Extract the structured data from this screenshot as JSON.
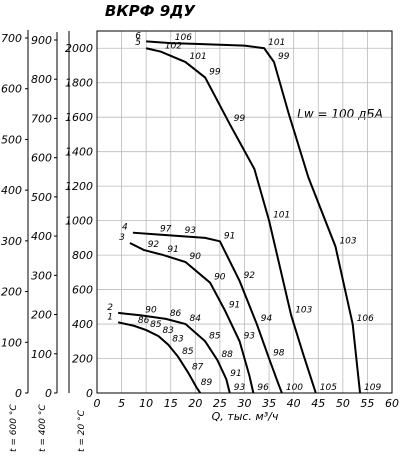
{
  "chart_data": {
    "type": "line",
    "title": "ВКРФ 9ДУ",
    "x_label": "Q, тыс. м³/ч",
    "y_label": "t = 20 °C",
    "annotation": "Lw = 100 дБА",
    "xlim": [
      0,
      60
    ],
    "ylim": [
      0,
      2100
    ],
    "xticks": [
      0,
      5,
      10,
      15,
      20,
      25,
      30,
      35,
      40,
      45,
      50,
      55,
      60
    ],
    "yticks": [
      0,
      200,
      400,
      600,
      800,
      1000,
      1200,
      1400,
      1600,
      1800,
      2000
    ],
    "grid": true,
    "extra_axes": [
      {
        "label": "t = 600 °C",
        "ylim": [
          0,
          700
        ],
        "yticks": [
          0,
          100,
          200,
          300,
          400,
          500,
          600,
          700
        ]
      },
      {
        "label": "t = 400 °C",
        "ylim": [
          0,
          900
        ],
        "yticks": [
          0,
          100,
          200,
          300,
          400,
          500,
          600,
          700,
          800,
          900
        ]
      }
    ],
    "series": [
      {
        "name": "1",
        "color": "#000000",
        "x": [
          4.3,
          7.5,
          10,
          12.5,
          14.5,
          16.5,
          18.5,
          20.3,
          21
        ],
        "values": [
          410,
          390,
          365,
          330,
          280,
          210,
          120,
          30,
          0
        ],
        "noise_levels": [
          null,
          86,
          85,
          83,
          83,
          85,
          87,
          89,
          null
        ]
      },
      {
        "name": "2",
        "color": "#000000",
        "x": [
          4.3,
          9,
          14,
          18,
          22,
          24.5,
          26.3,
          27
        ],
        "values": [
          465,
          450,
          430,
          400,
          300,
          190,
          80,
          0
        ],
        "noise_levels": [
          null,
          90,
          86,
          84,
          85,
          88,
          91,
          93
        ]
      },
      {
        "name": "3",
        "color": "#000000",
        "x": [
          6.7,
          9.5,
          13.5,
          18,
          23,
          26,
          29,
          31,
          31.8
        ],
        "values": [
          870,
          830,
          800,
          760,
          640,
          480,
          300,
          100,
          0
        ],
        "noise_levels": [
          null,
          92,
          91,
          90,
          90,
          91,
          93,
          null,
          96
        ]
      },
      {
        "name": "4",
        "color": "#000000",
        "x": [
          7.3,
          12,
          17,
          22,
          25,
          29,
          32.5,
          35,
          36.8,
          37.6
        ],
        "values": [
          930,
          920,
          910,
          900,
          880,
          650,
          400,
          200,
          60,
          0
        ],
        "noise_levels": [
          null,
          97,
          93,
          null,
          91,
          92,
          94,
          98,
          null,
          100
        ]
      },
      {
        "name": "5",
        "color": "#000000",
        "x": [
          10,
          13,
          18,
          22,
          27,
          32,
          35,
          39.5,
          42,
          44.5
        ],
        "values": [
          2000,
          1980,
          1920,
          1830,
          1560,
          1300,
          1000,
          450,
          220,
          0
        ],
        "noise_levels": [
          null,
          102,
          101,
          99,
          99,
          null,
          101,
          103,
          null,
          105
        ]
      },
      {
        "name": "6",
        "color": "#000000",
        "x": [
          10,
          15,
          20,
          25,
          30,
          34,
          36,
          39,
          43,
          48.5,
          52,
          53.5
        ],
        "values": [
          2040,
          2030,
          2025,
          2020,
          2015,
          2000,
          1920,
          1620,
          1250,
          850,
          400,
          0
        ],
        "noise_levels": [
          null,
          106,
          null,
          null,
          null,
          101,
          99,
          null,
          null,
          103,
          106,
          109
        ]
      }
    ]
  }
}
